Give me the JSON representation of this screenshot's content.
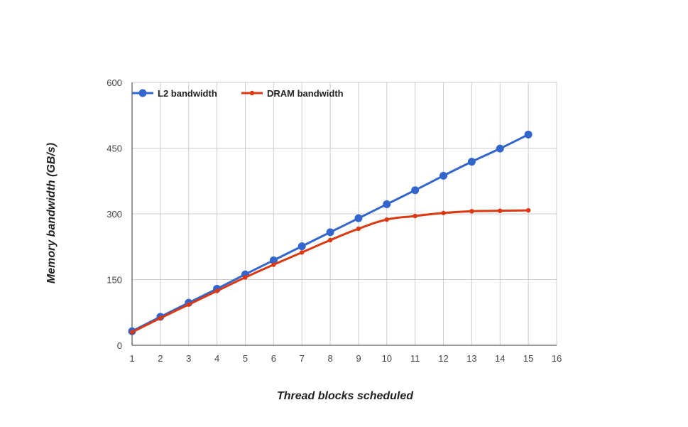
{
  "chart_data": {
    "type": "line",
    "title": "",
    "xlabel": "Thread blocks scheduled",
    "ylabel": "Memory bandwidth (GB/s)",
    "x": [
      1,
      2,
      3,
      4,
      5,
      6,
      7,
      8,
      9,
      10,
      11,
      12,
      13,
      14,
      15
    ],
    "xlim": [
      1,
      16
    ],
    "ylim": [
      0,
      600
    ],
    "xticks": [
      "1",
      "2",
      "3",
      "4",
      "5",
      "6",
      "7",
      "8",
      "9",
      "10",
      "11",
      "12",
      "13",
      "14",
      "15",
      "16"
    ],
    "yticks": [
      "0",
      "150",
      "300",
      "450",
      "600"
    ],
    "grid": true,
    "legend_position": "top-left",
    "series": [
      {
        "name": "L2 bandwidth",
        "color": "#3366cc",
        "marker": "large-circle",
        "values": [
          32,
          65,
          97,
          129,
          162,
          194,
          226,
          258,
          290,
          322,
          354,
          387,
          419,
          449,
          481
        ]
      },
      {
        "name": "DRAM bandwidth",
        "color": "#dc3912",
        "marker": "small-circle",
        "values": [
          30,
          62,
          93,
          124,
          155,
          184,
          212,
          240,
          266,
          287,
          295,
          302,
          306,
          307,
          308
        ]
      }
    ]
  }
}
